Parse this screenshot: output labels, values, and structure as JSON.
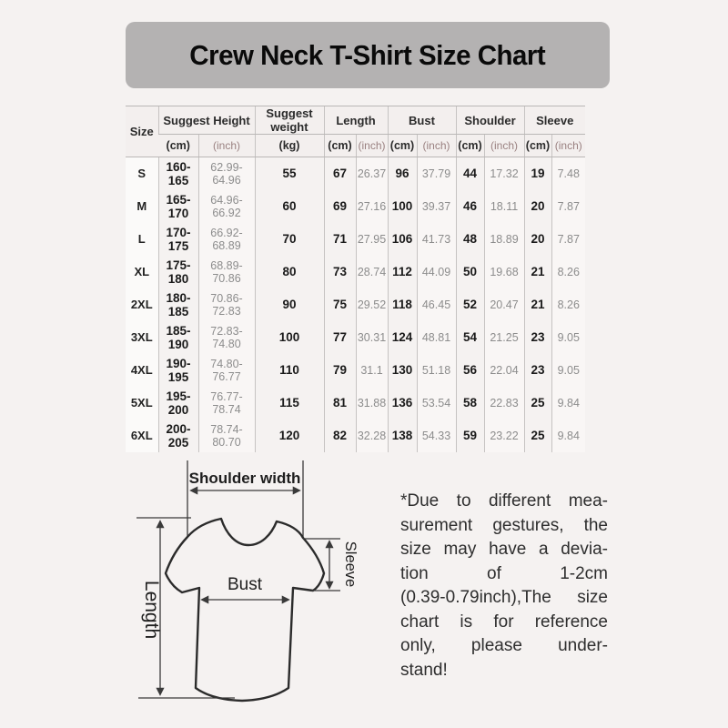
{
  "title": {
    "text": "Crew Neck T-Shirt Size Chart",
    "bar_color": "#b4b2b2"
  },
  "table": {
    "groups": [
      {
        "label": "Size",
        "sub": []
      },
      {
        "label": "Suggest Height",
        "sub": [
          "(cm)",
          "(inch)"
        ]
      },
      {
        "label": "Suggest weight",
        "sub": [
          "(kg)"
        ]
      },
      {
        "label": "Length",
        "sub": [
          "(cm)",
          "(inch)"
        ]
      },
      {
        "label": "Bust",
        "sub": [
          "(cm)",
          "(inch)"
        ]
      },
      {
        "label": "Shoulder",
        "sub": [
          "(cm)",
          "(inch)"
        ]
      },
      {
        "label": "Sleeve",
        "sub": [
          "(cm)",
          "(inch)"
        ]
      }
    ],
    "rows": [
      [
        "S",
        "160-165",
        "62.99-64.96",
        "55",
        "67",
        "26.37",
        "96",
        "37.79",
        "44",
        "17.32",
        "19",
        "7.48"
      ],
      [
        "M",
        "165-170",
        "64.96-66.92",
        "60",
        "69",
        "27.16",
        "100",
        "39.37",
        "46",
        "18.11",
        "20",
        "7.87"
      ],
      [
        "L",
        "170-175",
        "66.92-68.89",
        "70",
        "71",
        "27.95",
        "106",
        "41.73",
        "48",
        "18.89",
        "20",
        "7.87"
      ],
      [
        "XL",
        "175-180",
        "68.89-70.86",
        "80",
        "73",
        "28.74",
        "112",
        "44.09",
        "50",
        "19.68",
        "21",
        "8.26"
      ],
      [
        "2XL",
        "180-185",
        "70.86-72.83",
        "90",
        "75",
        "29.52",
        "118",
        "46.45",
        "52",
        "20.47",
        "21",
        "8.26"
      ],
      [
        "3XL",
        "185-190",
        "72.83-74.80",
        "100",
        "77",
        "30.31",
        "124",
        "48.81",
        "54",
        "21.25",
        "23",
        "9.05"
      ],
      [
        "4XL",
        "190-195",
        "74.80-76.77",
        "110",
        "79",
        "31.1",
        "130",
        "51.18",
        "56",
        "22.04",
        "23",
        "9.05"
      ],
      [
        "5XL",
        "195-200",
        "76.77-78.74",
        "115",
        "81",
        "31.88",
        "136",
        "53.54",
        "58",
        "22.83",
        "25",
        "9.84"
      ],
      [
        "6XL",
        "200-205",
        "78.74-80.70",
        "120",
        "82",
        "32.28",
        "138",
        "54.33",
        "59",
        "23.22",
        "25",
        "9.84"
      ]
    ]
  },
  "diagram": {
    "labels": {
      "shoulder": "Shoulder width",
      "bust": "Bust",
      "length": "Length",
      "sleeve": "Sleeve"
    }
  },
  "note": {
    "full_text": "*Due to different measurement gestures, the size may have a deviation of 1-2cm (0.39-0.79inch),The size chart is for reference only, please understand!",
    "lines": [
      "*Due to different mea-",
      "surement gestures, the",
      "size may have a devia-",
      "tion of 1-2cm",
      "(0.39-0.79inch),The size",
      "chart is for reference",
      "only, please under-",
      "stand!"
    ]
  }
}
